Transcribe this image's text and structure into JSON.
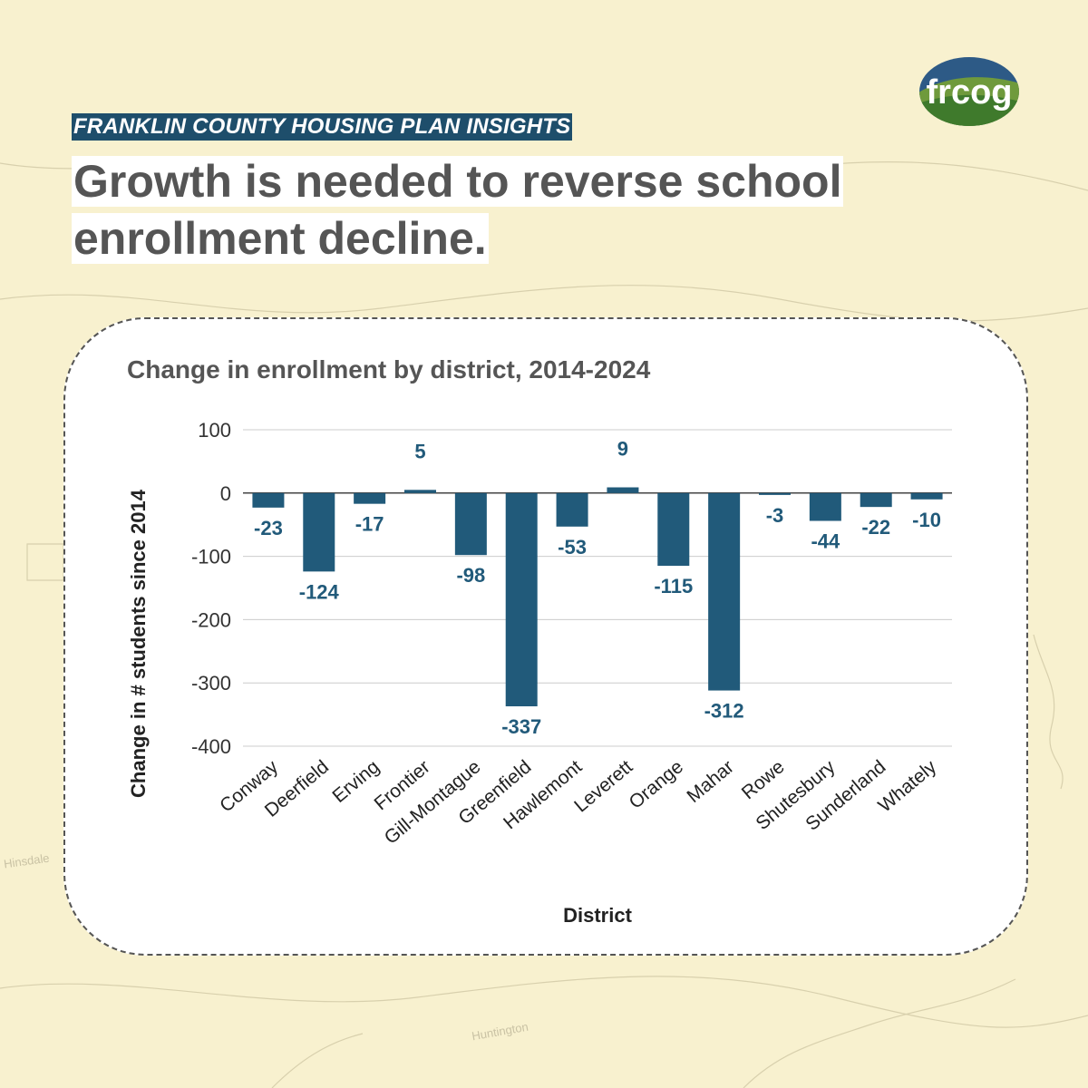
{
  "header": {
    "kicker": "FRANKLIN COUNTY HOUSING PLAN INSIGHTS",
    "headline": "Growth is needed to reverse school enrollment decline."
  },
  "logo": {
    "text": "frcog"
  },
  "map_labels": {
    "hinsdale": "Hinsdale",
    "huntington": "Huntington"
  },
  "colors": {
    "bar": "#215a7a",
    "kicker_bg": "#1e4e6b",
    "headline_text": "#555555",
    "background": "#f8f1cf"
  },
  "chart_data": {
    "type": "bar",
    "title": "Change in enrollment by district, 2014-2024",
    "xlabel": "District",
    "ylabel": "Change in # students since 2014",
    "ylim": [
      -400,
      100
    ],
    "yticks": [
      100,
      0,
      -100,
      -200,
      -300,
      -400
    ],
    "grid": true,
    "categories": [
      "Conway",
      "Deerfield",
      "Erving",
      "Frontier",
      "Gill-Montague",
      "Greenfield",
      "Hawlemont",
      "Leverett",
      "Orange",
      "Mahar",
      "Rowe",
      "Shutesbury",
      "Sunderland",
      "Whately"
    ],
    "values": [
      -23,
      -124,
      -17,
      5,
      -98,
      -337,
      -53,
      9,
      -115,
      -312,
      -3,
      -44,
      -22,
      -10
    ]
  }
}
